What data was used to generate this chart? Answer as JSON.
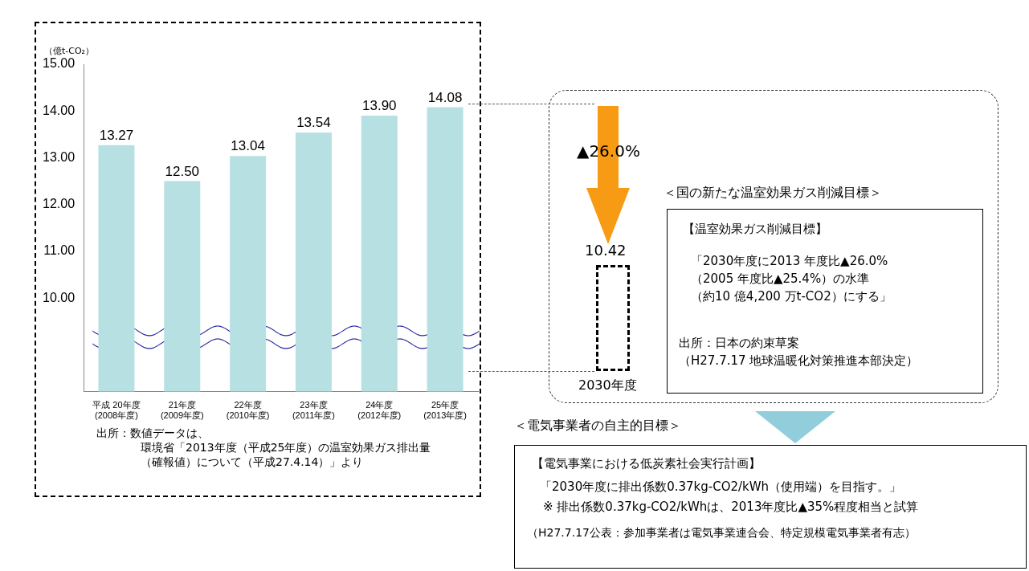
{
  "chart_data": {
    "type": "bar",
    "ylabel": "（億t-CO₂）",
    "categories": [
      "平成 20年度\n(2008年度)",
      "21年度\n(2009年度)",
      "22年度\n(2010年度)",
      "23年度\n(2011年度)",
      "24年度\n(2012年度)",
      "25年度\n(2013年度)"
    ],
    "values": [
      13.27,
      12.5,
      13.04,
      13.54,
      13.9,
      14.08
    ],
    "value_labels": [
      "13.27",
      "12.50",
      "13.04",
      "13.54",
      "13.90",
      "14.08"
    ],
    "color": "#b7e0e2",
    "ylim": [
      8,
      15
    ],
    "yticks": [
      {
        "value": 10,
        "label": "10.00"
      },
      {
        "value": 11,
        "label": "11.00"
      },
      {
        "value": 12,
        "label": "12.00"
      },
      {
        "value": 13,
        "label": "13.00"
      },
      {
        "value": 14,
        "label": "14.00"
      },
      {
        "value": 15,
        "label": "15.00"
      }
    ],
    "grid": false,
    "legend": false,
    "annotations": [
      "出所：数値データは、",
      "環境省「2013年度（平成25年度）の温室効果ガス排出量",
      "（確報値）について（平成27.4.14）」より",
      "▲26.0%",
      "10.42",
      "2030年度",
      "＜国の新たな温室効果ガス削減目標＞",
      "【温室効果ガス削減目標】",
      "「2030年度に2013 年度比▲26.0%",
      "（2005 年度比▲25.4%）の水準",
      "（約10 億4,200 万t-CO2）にする」",
      "出所：日本の約束草案",
      "（H27.7.17 地球温暖化対策推進本部決定）",
      "＜電気事業者の自主的目標＞",
      "【電気事業における低炭素社会実行計画】",
      "「2030年度に排出係数0.37kg-CO2/kWh（使用端）を目指す。」",
      "※ 排出係数0.37kg-CO2/kWhは、2013年度比▲35%程度相当と試算",
      "（H27.7.17公表：参加事業者は電気事業連合会、特定規模電気事業者有志）"
    ]
  }
}
